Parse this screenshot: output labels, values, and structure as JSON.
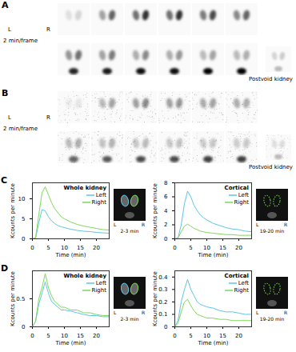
{
  "image_panels": [
    {
      "label": "A",
      "frame_label": "2 min/frame",
      "left_label": "L",
      "right_label": "R",
      "postvoid_label": "Postvoid kidney"
    },
    {
      "label": "B",
      "frame_label": "2 min/frame",
      "left_label": "L",
      "right_label": "R",
      "postvoid_label": "Postvoid kidney"
    }
  ],
  "chart_data": [
    {
      "type": "line",
      "title": "Whole kidney",
      "xlabel": "Time (min)",
      "ylabel": "Kcounts per minute",
      "x": [
        0,
        1,
        2,
        3,
        4,
        5,
        6,
        7,
        8,
        9,
        10,
        12,
        14,
        16,
        18,
        20,
        22,
        24
      ],
      "series": [
        {
          "name": "Left",
          "color": "#5cc6e8",
          "values": [
            0,
            0.2,
            4,
            7.3,
            7,
            5.5,
            4.5,
            3.8,
            3.3,
            3,
            2.8,
            2.4,
            2.1,
            1.9,
            1.8,
            1.6,
            1.5,
            1.4
          ]
        },
        {
          "name": "Right",
          "color": "#7ed957",
          "values": [
            0,
            0.3,
            6,
            11.5,
            13,
            11,
            9,
            7.5,
            6.5,
            5.5,
            5,
            4.2,
            3.6,
            3.2,
            2.9,
            2.6,
            2.3,
            2.2
          ]
        }
      ],
      "xlim": [
        0,
        24
      ],
      "xticks": [
        0,
        5,
        10,
        15,
        20
      ],
      "ylim": [
        0,
        14
      ],
      "yticks": [
        0,
        5,
        10
      ],
      "legend": "top-right",
      "annotations": {
        "panel": "C",
        "inset": "2-3 min",
        "inset_left": "L",
        "inset_right": "R"
      }
    },
    {
      "type": "line",
      "title": "Cortical",
      "xlabel": "Time (min)",
      "ylabel": "Kcounts per minute",
      "x": [
        0,
        1,
        2,
        3,
        4,
        5,
        6,
        7,
        8,
        9,
        10,
        12,
        14,
        16,
        18,
        20,
        22,
        24
      ],
      "series": [
        {
          "name": "Left",
          "color": "#5cc6e8",
          "values": [
            0,
            0.1,
            2,
            5,
            6.8,
            6,
            4.8,
            4,
            3.4,
            3,
            2.7,
            2.2,
            1.9,
            1.6,
            1.4,
            1.3,
            1.1,
            1.0
          ]
        },
        {
          "name": "Right",
          "color": "#7ed957",
          "values": [
            0,
            0.1,
            1,
            1.8,
            2.1,
            1.8,
            1.5,
            1.3,
            1.1,
            1,
            0.9,
            0.8,
            0.7,
            0.6,
            0.6,
            0.5,
            0.5,
            0.5
          ]
        }
      ],
      "xlim": [
        0,
        24
      ],
      "xticks": [
        0,
        5,
        10,
        15,
        20
      ],
      "ylim": [
        0,
        8
      ],
      "yticks": [
        0,
        2,
        4,
        6,
        8
      ],
      "legend": "top-right",
      "annotations": {
        "inset": "19-20 min",
        "inset_left": "L",
        "inset_right": "R"
      }
    },
    {
      "type": "line",
      "title": "Whole kidney",
      "xlabel": "Time (min)",
      "ylabel": "Kcounts per minute",
      "x": [
        0,
        1,
        2,
        3,
        4,
        5,
        6,
        7,
        8,
        9,
        10,
        12,
        14,
        16,
        18,
        20,
        22,
        24
      ],
      "series": [
        {
          "name": "Left",
          "color": "#5cc6e8",
          "values": [
            0,
            0.1,
            0.4,
            0.6,
            0.8,
            0.6,
            0.45,
            0.4,
            0.35,
            0.3,
            0.3,
            0.28,
            0.25,
            0.22,
            0.2,
            0.2,
            0.18,
            0.18
          ]
        },
        {
          "name": "Right",
          "color": "#7ed957",
          "values": [
            0,
            0.1,
            0.5,
            0.7,
            0.95,
            0.7,
            0.55,
            0.45,
            0.4,
            0.35,
            0.35,
            0.3,
            0.3,
            0.25,
            0.25,
            0.22,
            0.2,
            0.2
          ]
        }
      ],
      "xlim": [
        0,
        24
      ],
      "xticks": [
        0,
        5,
        10,
        15,
        20
      ],
      "ylim": [
        0,
        1
      ],
      "yticks": [
        0,
        0.5
      ],
      "legend": "top-right",
      "annotations": {
        "panel": "D",
        "inset": "2-3 min",
        "inset_left": "L",
        "inset_right": "R"
      }
    },
    {
      "type": "line",
      "title": "Cortical",
      "xlabel": "Time (min)",
      "ylabel": "Kcounts per minute",
      "x": [
        0,
        1,
        2,
        3,
        4,
        5,
        6,
        7,
        8,
        9,
        10,
        12,
        14,
        16,
        18,
        20,
        22,
        24
      ],
      "series": [
        {
          "name": "Left",
          "color": "#5cc6e8",
          "values": [
            0,
            0.05,
            0.2,
            0.3,
            0.38,
            0.3,
            0.25,
            0.2,
            0.18,
            0.17,
            0.16,
            0.15,
            0.13,
            0.12,
            0.12,
            0.11,
            0.1,
            0.1
          ]
        },
        {
          "name": "Right",
          "color": "#7ed957",
          "values": [
            0,
            0.03,
            0.12,
            0.2,
            0.22,
            0.17,
            0.13,
            0.1,
            0.09,
            0.08,
            0.07,
            0.07,
            0.06,
            0.06,
            0.05,
            0.05,
            0.05,
            0.05
          ]
        }
      ],
      "xlim": [
        0,
        24
      ],
      "xticks": [
        0,
        5,
        10,
        15,
        20
      ],
      "ylim": [
        0,
        0.45
      ],
      "yticks": [
        0,
        0.1,
        0.2,
        0.3,
        0.4
      ],
      "legend": "top-right",
      "annotations": {
        "inset": "19-20 min",
        "inset_left": "L",
        "inset_right": "R"
      }
    }
  ]
}
